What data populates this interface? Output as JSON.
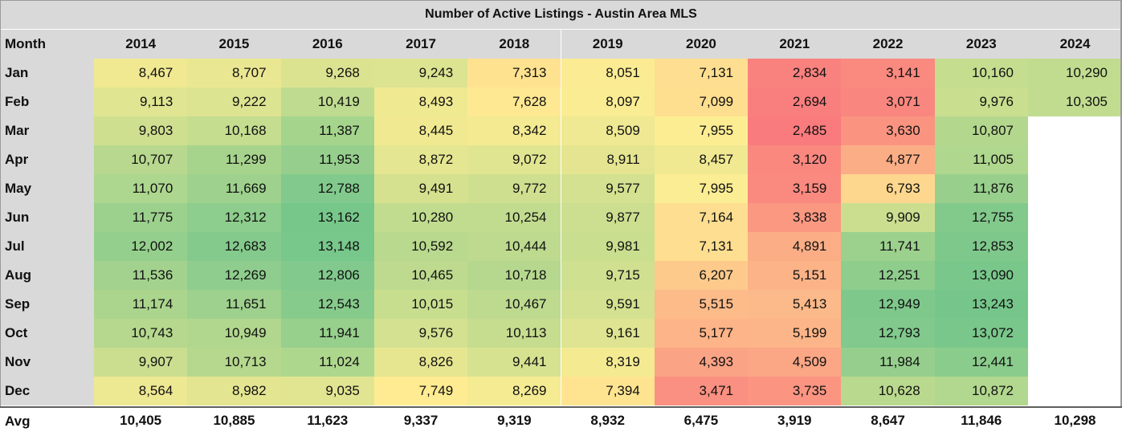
{
  "chart_data": {
    "type": "table",
    "title": "Number of Active Listings - Austin Area MLS",
    "row_header_label": "Month",
    "years": [
      "2014",
      "2015",
      "2016",
      "2017",
      "2018",
      "2019",
      "2020",
      "2021",
      "2022",
      "2023",
      "2024"
    ],
    "months": [
      "Jan",
      "Feb",
      "Mar",
      "Apr",
      "May",
      "Jun",
      "Jul",
      "Aug",
      "Sep",
      "Oct",
      "Nov",
      "Dec"
    ],
    "values": [
      [
        "8,467",
        "8,707",
        "9,268",
        "9,243",
        "7,313",
        "8,051",
        "7,131",
        "2,834",
        "3,141",
        "10,160",
        "10,290"
      ],
      [
        "9,113",
        "9,222",
        "10,419",
        "8,493",
        "7,628",
        "8,097",
        "7,099",
        "2,694",
        "3,071",
        "9,976",
        "10,305"
      ],
      [
        "9,803",
        "10,168",
        "11,387",
        "8,445",
        "8,342",
        "8,509",
        "7,955",
        "2,485",
        "3,630",
        "10,807",
        ""
      ],
      [
        "10,707",
        "11,299",
        "11,953",
        "8,872",
        "9,072",
        "8,911",
        "8,457",
        "3,120",
        "4,877",
        "11,005",
        ""
      ],
      [
        "11,070",
        "11,669",
        "12,788",
        "9,491",
        "9,772",
        "9,577",
        "7,995",
        "3,159",
        "6,793",
        "11,876",
        ""
      ],
      [
        "11,775",
        "12,312",
        "13,162",
        "10,280",
        "10,254",
        "9,877",
        "7,164",
        "3,838",
        "9,909",
        "12,755",
        ""
      ],
      [
        "12,002",
        "12,683",
        "13,148",
        "10,592",
        "10,444",
        "9,981",
        "7,131",
        "4,891",
        "11,741",
        "12,853",
        ""
      ],
      [
        "11,536",
        "12,269",
        "12,806",
        "10,465",
        "10,718",
        "9,715",
        "6,207",
        "5,151",
        "12,251",
        "13,090",
        ""
      ],
      [
        "11,174",
        "11,651",
        "12,543",
        "10,015",
        "10,467",
        "9,591",
        "5,515",
        "5,413",
        "12,949",
        "13,243",
        ""
      ],
      [
        "10,743",
        "10,949",
        "11,941",
        "9,576",
        "10,113",
        "9,161",
        "5,177",
        "5,199",
        "12,793",
        "13,072",
        ""
      ],
      [
        "9,907",
        "10,713",
        "11,024",
        "8,826",
        "9,441",
        "8,319",
        "4,393",
        "4,509",
        "11,984",
        "12,441",
        ""
      ],
      [
        "8,564",
        "8,982",
        "9,035",
        "7,749",
        "8,269",
        "7,394",
        "3,471",
        "3,735",
        "10,628",
        "10,872",
        ""
      ]
    ],
    "avg_label": "Avg",
    "averages": [
      "10,405",
      "10,885",
      "11,623",
      "9,337",
      "9,319",
      "8,932",
      "6,475",
      "3,919",
      "8,647",
      "11,846",
      "10,298"
    ],
    "color_scale": {
      "low": "#f8696b",
      "mid": "#ffeb84",
      "high": "#63be7b",
      "min": 2485,
      "max": 13243
    },
    "colors": {
      "header_bg": "#d9d9d9",
      "empty_cell": "#ffffff"
    }
  }
}
